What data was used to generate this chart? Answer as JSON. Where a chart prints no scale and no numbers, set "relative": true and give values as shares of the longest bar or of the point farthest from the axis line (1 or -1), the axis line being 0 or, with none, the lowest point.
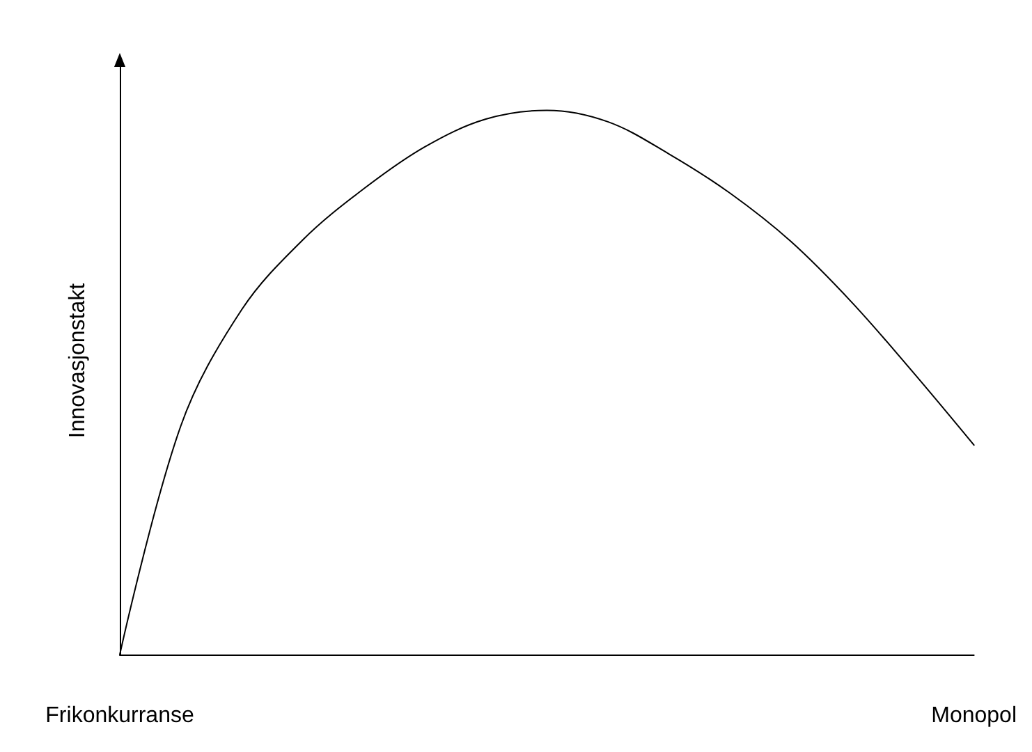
{
  "chart_data": {
    "type": "line",
    "relative": true,
    "ylabel": "Innovasjonstakt",
    "categories": [
      "Frikonkurranse",
      null,
      null,
      null,
      null,
      null,
      null,
      null,
      null,
      null,
      null,
      null,
      null,
      null,
      "Monopol"
    ],
    "series": [
      {
        "color": "#000000",
        "values": [
          0,
          0.42,
          0.634,
          0.762,
          0.856,
          0.933,
          0.984,
          1,
          0.979,
          0.92,
          0.848,
          0.759,
          0.647,
          0.519,
          0.385
        ]
      }
    ],
    "marker": "none",
    "line_style": "solid",
    "grid": false
  }
}
